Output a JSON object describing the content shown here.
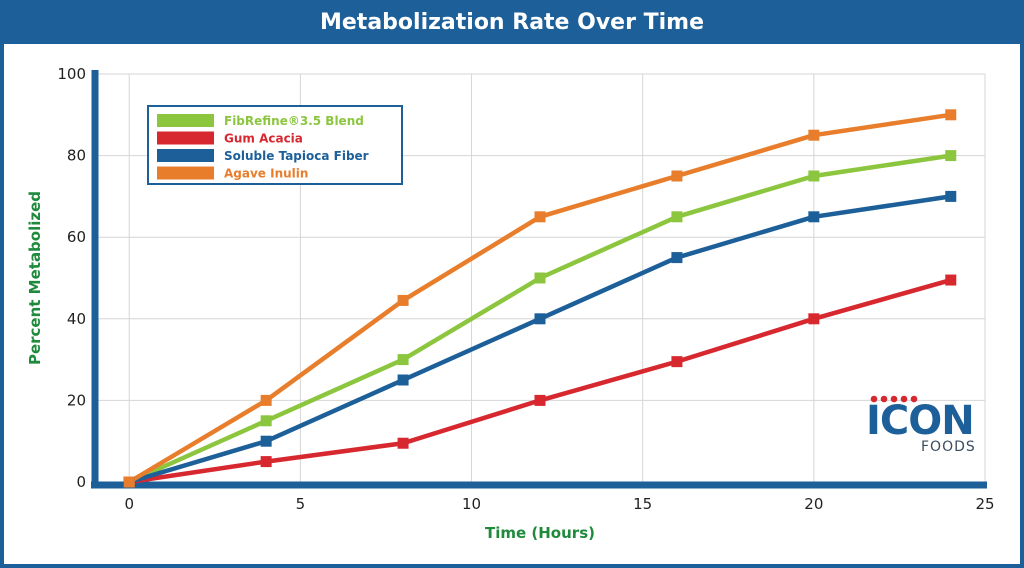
{
  "header": {
    "title": "Metabolization Rate Over Time"
  },
  "logo": {
    "name": "ICON",
    "sub": "FOODS"
  },
  "colors": {
    "frame": "#1c5f99",
    "axis": "#1c5f99",
    "grid": "#d6d6d6",
    "axis_title": "#1f8a3c"
  },
  "chart_data": {
    "type": "line",
    "title": "Metabolization Rate Over Time",
    "xlabel": "Time (Hours)",
    "ylabel": "Percent Metabolized",
    "xlim": [
      -1,
      25
    ],
    "ylim": [
      0,
      100
    ],
    "xticks": [
      0,
      5,
      10,
      15,
      20,
      25
    ],
    "yticks": [
      0,
      20,
      40,
      60,
      80,
      100
    ],
    "grid": true,
    "legend_position": "top-left",
    "x": [
      0,
      4,
      8,
      12,
      16,
      20,
      24
    ],
    "series": [
      {
        "name": "FibRefine®3.5 Blend",
        "color": "#8cc63f",
        "values": [
          0,
          15,
          30,
          50,
          65,
          75,
          80
        ]
      },
      {
        "name": "Gum Acacia",
        "color": "#d7282f",
        "values": [
          0,
          5,
          9.5,
          20,
          29.5,
          40,
          49.5
        ]
      },
      {
        "name": "Soluble Tapioca Fiber",
        "color": "#1c5f99",
        "values": [
          0,
          10,
          25,
          40,
          55,
          65,
          70
        ]
      },
      {
        "name": "Agave Inulin",
        "color": "#e87e2c",
        "values": [
          0,
          20,
          44.5,
          65,
          75,
          85,
          90
        ]
      }
    ]
  }
}
